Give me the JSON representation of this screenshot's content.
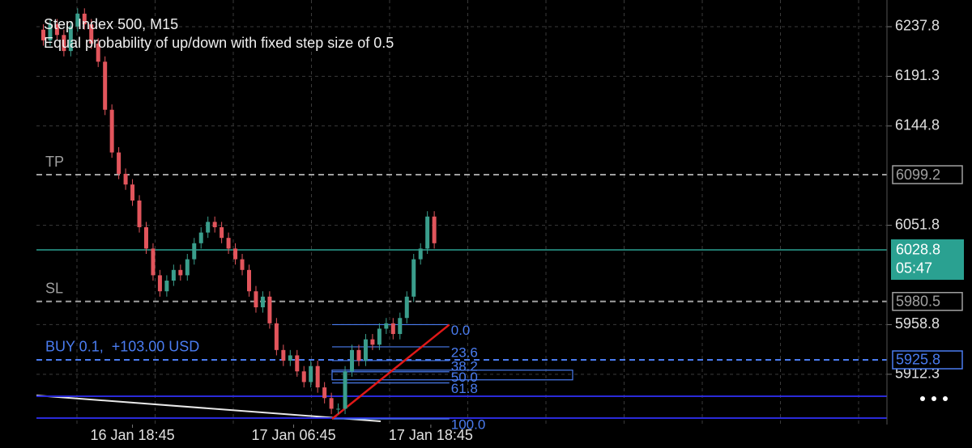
{
  "chart_data": {
    "type": "candlestick",
    "title": "Step Index 500, M15",
    "subtitle": "Equal probability of up/down with fixed step size of 0.5",
    "x": [
      1,
      2,
      3,
      4,
      5,
      6,
      7,
      8,
      9,
      10,
      11,
      12,
      13,
      14,
      15,
      16,
      17,
      18,
      19,
      20,
      21,
      22,
      23,
      24,
      25,
      26,
      27,
      28,
      29,
      30,
      31,
      32,
      33,
      34,
      35,
      36,
      37,
      38,
      39,
      40,
      41,
      42,
      43,
      44,
      45,
      46,
      47,
      48,
      49,
      50,
      51,
      52,
      53,
      54,
      55,
      56,
      57,
      58
    ],
    "open": [
      6235,
      6225,
      6240,
      6230,
      6215,
      6238,
      6250,
      6240,
      6222,
      6205,
      6160,
      6120,
      6100,
      6090,
      6075,
      6050,
      6030,
      6005,
      5990,
      6000,
      6010,
      6005,
      6020,
      6035,
      6045,
      6055,
      6050,
      6040,
      6030,
      6020,
      6010,
      5990,
      5975,
      5985,
      5960,
      5935,
      5925,
      5930,
      5915,
      5905,
      5920,
      5900,
      5890,
      5880,
      5880,
      5915,
      5935,
      5925,
      5945,
      5940,
      5955,
      5960,
      5950,
      5965,
      5985,
      6020,
      6030,
      6060
    ],
    "high": [
      6240,
      6245,
      6245,
      6235,
      6243,
      6255,
      6255,
      6245,
      6227,
      6210,
      6165,
      6125,
      6105,
      6095,
      6080,
      6055,
      6035,
      6010,
      6005,
      6015,
      6015,
      6025,
      6040,
      6050,
      6060,
      6060,
      6055,
      6045,
      6035,
      6025,
      6015,
      5995,
      5990,
      5990,
      5965,
      5940,
      5935,
      5935,
      5920,
      5925,
      5925,
      5905,
      5895,
      5885,
      5920,
      5940,
      5940,
      5950,
      5950,
      5960,
      5965,
      5965,
      5970,
      5990,
      6025,
      6035,
      6065,
      6065
    ],
    "low": [
      6220,
      6220,
      6225,
      6210,
      6210,
      6233,
      6235,
      6217,
      6200,
      6155,
      6115,
      6095,
      6085,
      6070,
      6045,
      6025,
      6000,
      5985,
      5985,
      5995,
      6000,
      6000,
      6015,
      6030,
      6040,
      6045,
      6035,
      6025,
      6015,
      6005,
      5985,
      5970,
      5970,
      5955,
      5930,
      5920,
      5920,
      5910,
      5900,
      5900,
      5895,
      5885,
      5875,
      5875,
      5875,
      5910,
      5920,
      5920,
      5935,
      5935,
      5950,
      5945,
      5945,
      5960,
      5980,
      6015,
      6025,
      6030
    ],
    "close": [
      6225,
      6240,
      6230,
      6215,
      6238,
      6250,
      6240,
      6222,
      6205,
      6160,
      6120,
      6100,
      6090,
      6075,
      6050,
      6030,
      6005,
      5990,
      6000,
      6010,
      6005,
      6020,
      6035,
      6045,
      6055,
      6050,
      6040,
      6030,
      6020,
      6010,
      5990,
      5975,
      5985,
      5960,
      5935,
      5925,
      5930,
      5915,
      5905,
      5920,
      5900,
      5890,
      5880,
      5880,
      5915,
      5935,
      5925,
      5945,
      5940,
      5955,
      5960,
      5950,
      5965,
      5985,
      6020,
      6030,
      6060,
      6035
    ],
    "up_color": "#3a9e8c",
    "down_color": "#e2555c",
    "xlim": [
      0,
      124
    ],
    "xticks": [
      {
        "value": 14,
        "label": "16 Jan 18:45"
      },
      {
        "value": 37.5,
        "label": "17 Jan 06:45"
      },
      {
        "value": 57.5,
        "label": "17 Jan 18:45"
      }
    ],
    "ylim": [
      5869,
      6259
    ],
    "yticks": [
      6237.8,
      6191.3,
      6144.8,
      6051.8,
      5958.8,
      5912.3
    ],
    "grid": true,
    "levels": [
      {
        "name": "TP",
        "value": 6099.2,
        "color": "#a0a0a0"
      },
      {
        "name": "SL",
        "value": 5980.5,
        "color": "#a0a0a0"
      },
      {
        "name": "BUY 0.1,  +103.00 USD",
        "value": 5925.8,
        "color": "#4a7cf0"
      }
    ],
    "current_price": {
      "value": 6028.8,
      "timer": "05:47",
      "color": "#2aa191"
    },
    "fibonacci": {
      "high": 5958.8,
      "low": 5870.5,
      "from_x": 43.1,
      "to_x": 60.2,
      "color": "#4a7cf0",
      "trend_color": "#e01818",
      "levels": [
        0,
        23.6,
        38.2,
        50,
        61.8,
        100
      ],
      "value_labels": [
        "0.0",
        "23.6",
        "38.2",
        "50.0",
        "61.8",
        "100.0"
      ]
    }
  }
}
